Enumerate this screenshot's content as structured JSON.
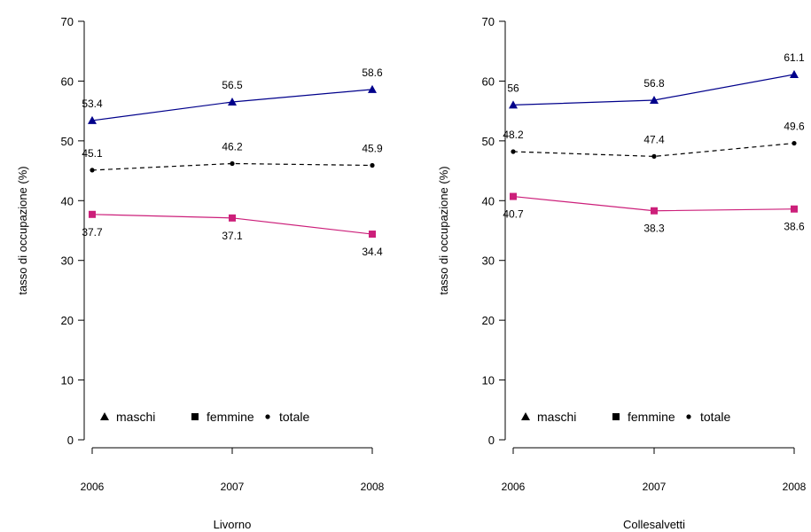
{
  "chart_data": [
    {
      "type": "line",
      "xlabel": "Livorno",
      "ylabel": "tasso di occupazione (%)",
      "x": [
        "2006",
        "2007",
        "2008"
      ],
      "ylim": [
        0,
        70
      ],
      "yticks": [
        "0",
        "10",
        "20",
        "30",
        "40",
        "50",
        "60",
        "70"
      ],
      "series": [
        {
          "name": "maschi",
          "values": [
            53.4,
            56.5,
            58.6
          ],
          "labels": [
            "53.4",
            "56.5",
            "58.6"
          ],
          "color": "#00008b",
          "marker": "triangle",
          "dash": "solid"
        },
        {
          "name": "femmine",
          "values": [
            37.7,
            37.1,
            34.4
          ],
          "labels": [
            "37.7",
            "37.1",
            "34.4"
          ],
          "color": "#cc1f7a",
          "marker": "square",
          "dash": "solid"
        },
        {
          "name": "totale",
          "values": [
            45.1,
            46.2,
            45.9
          ],
          "labels": [
            "45.1",
            "46.2",
            "45.9"
          ],
          "color": "#000000",
          "marker": "dot",
          "dash": "dashed"
        }
      ],
      "legend": "bottom"
    },
    {
      "type": "line",
      "xlabel": "Collesalvetti",
      "ylabel": "tasso di occupazione (%)",
      "x": [
        "2006",
        "2007",
        "2008"
      ],
      "ylim": [
        0,
        70
      ],
      "yticks": [
        "0",
        "10",
        "20",
        "30",
        "40",
        "50",
        "60",
        "70"
      ],
      "series": [
        {
          "name": "maschi",
          "values": [
            56,
            56.8,
            61.1
          ],
          "labels": [
            "56",
            "56.8",
            "61.1"
          ],
          "color": "#00008b",
          "marker": "triangle",
          "dash": "solid"
        },
        {
          "name": "femmine",
          "values": [
            40.7,
            38.3,
            38.6
          ],
          "labels": [
            "40.7",
            "38.3",
            "38.6"
          ],
          "color": "#cc1f7a",
          "marker": "square",
          "dash": "solid"
        },
        {
          "name": "totale",
          "values": [
            48.2,
            47.4,
            49.6
          ],
          "labels": [
            "48.2",
            "47.4",
            "49.6"
          ],
          "color": "#000000",
          "marker": "dot",
          "dash": "dashed"
        }
      ],
      "legend": "bottom"
    }
  ]
}
